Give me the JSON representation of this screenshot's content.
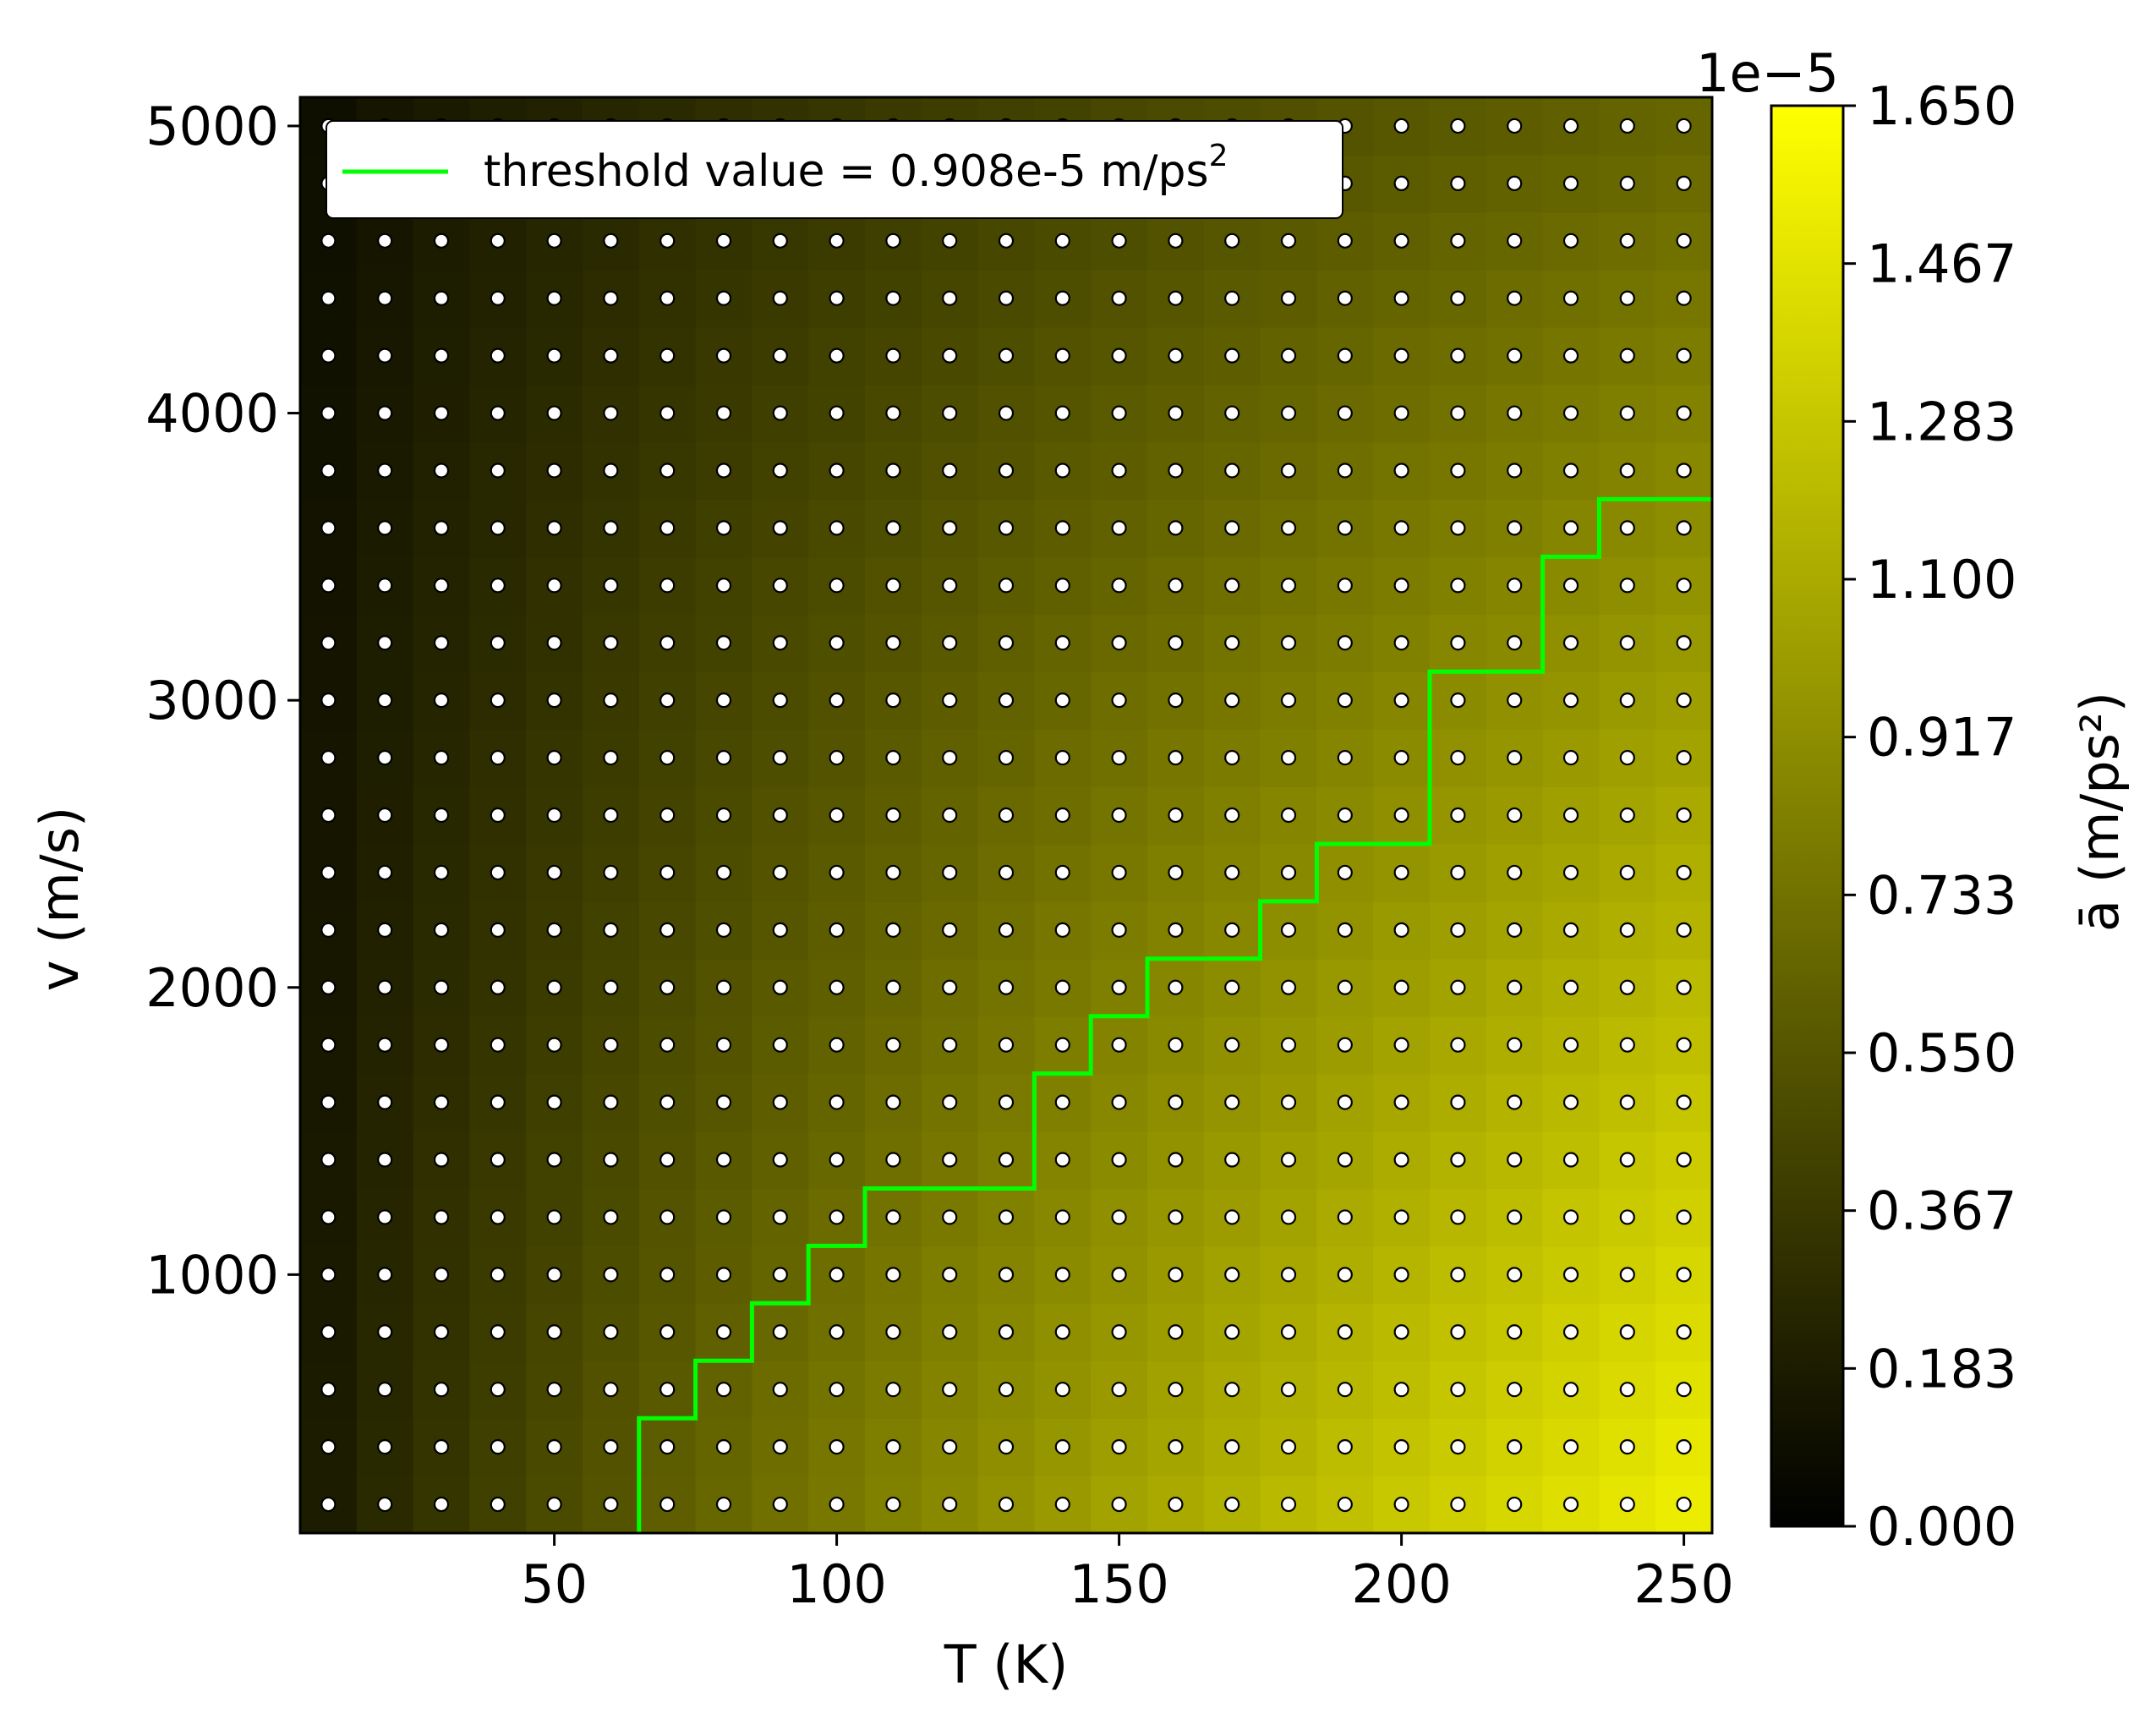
{
  "chart_data": {
    "type": "heatmap",
    "xlabel": "T (K)",
    "ylabel": "v (m/s)",
    "xlim": [
      5,
      255
    ],
    "ylim": [
      100,
      5100
    ],
    "x_ticks": [
      {
        "value": 50,
        "label": "50"
      },
      {
        "value": 100,
        "label": "100"
      },
      {
        "value": 150,
        "label": "150"
      },
      {
        "value": 200,
        "label": "200"
      },
      {
        "value": 250,
        "label": "250"
      }
    ],
    "y_ticks": [
      {
        "value": 1000,
        "label": "1000"
      },
      {
        "value": 2000,
        "label": "2000"
      },
      {
        "value": 3000,
        "label": "3000"
      },
      {
        "value": 4000,
        "label": "4000"
      },
      {
        "value": 5000,
        "label": "5000"
      }
    ],
    "grid_T": [
      10,
      20,
      30,
      40,
      50,
      60,
      70,
      80,
      90,
      100,
      110,
      120,
      130,
      140,
      150,
      160,
      170,
      180,
      190,
      200,
      210,
      220,
      230,
      240,
      250
    ],
    "grid_v": [
      200,
      400,
      600,
      800,
      1000,
      1200,
      1400,
      1600,
      1800,
      2000,
      2200,
      2400,
      2600,
      2800,
      3000,
      3200,
      3400,
      3600,
      3800,
      4000,
      4200,
      4400,
      4600,
      4800,
      5000
    ],
    "colorbar": {
      "label": "ā (m/ps²)",
      "offset_text": "1e−5",
      "range": [
        0.0,
        1.65
      ],
      "ticks": [
        "0.000",
        "0.183",
        "0.367",
        "0.550",
        "0.733",
        "0.917",
        "1.100",
        "1.283",
        "1.467",
        "1.650"
      ],
      "colormap": [
        "#000000",
        "#ffff00"
      ]
    },
    "legend": {
      "placement": "upper-left",
      "entries": [
        {
          "label_prefix": "threshold value = 0.908e-5 m/ps",
          "label_sup": "2",
          "color": "#00ff00"
        }
      ]
    },
    "threshold_line": {
      "color": "#00ff00",
      "points": [
        [
          65,
          100
        ],
        [
          65,
          500
        ],
        [
          75,
          500
        ],
        [
          75,
          700
        ],
        [
          85,
          700
        ],
        [
          85,
          900
        ],
        [
          95,
          900
        ],
        [
          95,
          1100
        ],
        [
          105,
          1100
        ],
        [
          105,
          1300
        ],
        [
          135,
          1300
        ],
        [
          135,
          1700
        ],
        [
          145,
          1700
        ],
        [
          145,
          1900
        ],
        [
          155,
          1900
        ],
        [
          155,
          2100
        ],
        [
          175,
          2100
        ],
        [
          175,
          2300
        ],
        [
          185,
          2300
        ],
        [
          185,
          2500
        ],
        [
          205,
          2500
        ],
        [
          205,
          3100
        ],
        [
          225,
          3100
        ],
        [
          225,
          3500
        ],
        [
          235,
          3500
        ],
        [
          235,
          3700
        ],
        [
          255,
          3700
        ]
      ]
    },
    "markers": {
      "face": "#ffffff",
      "edge": "#000000"
    }
  }
}
